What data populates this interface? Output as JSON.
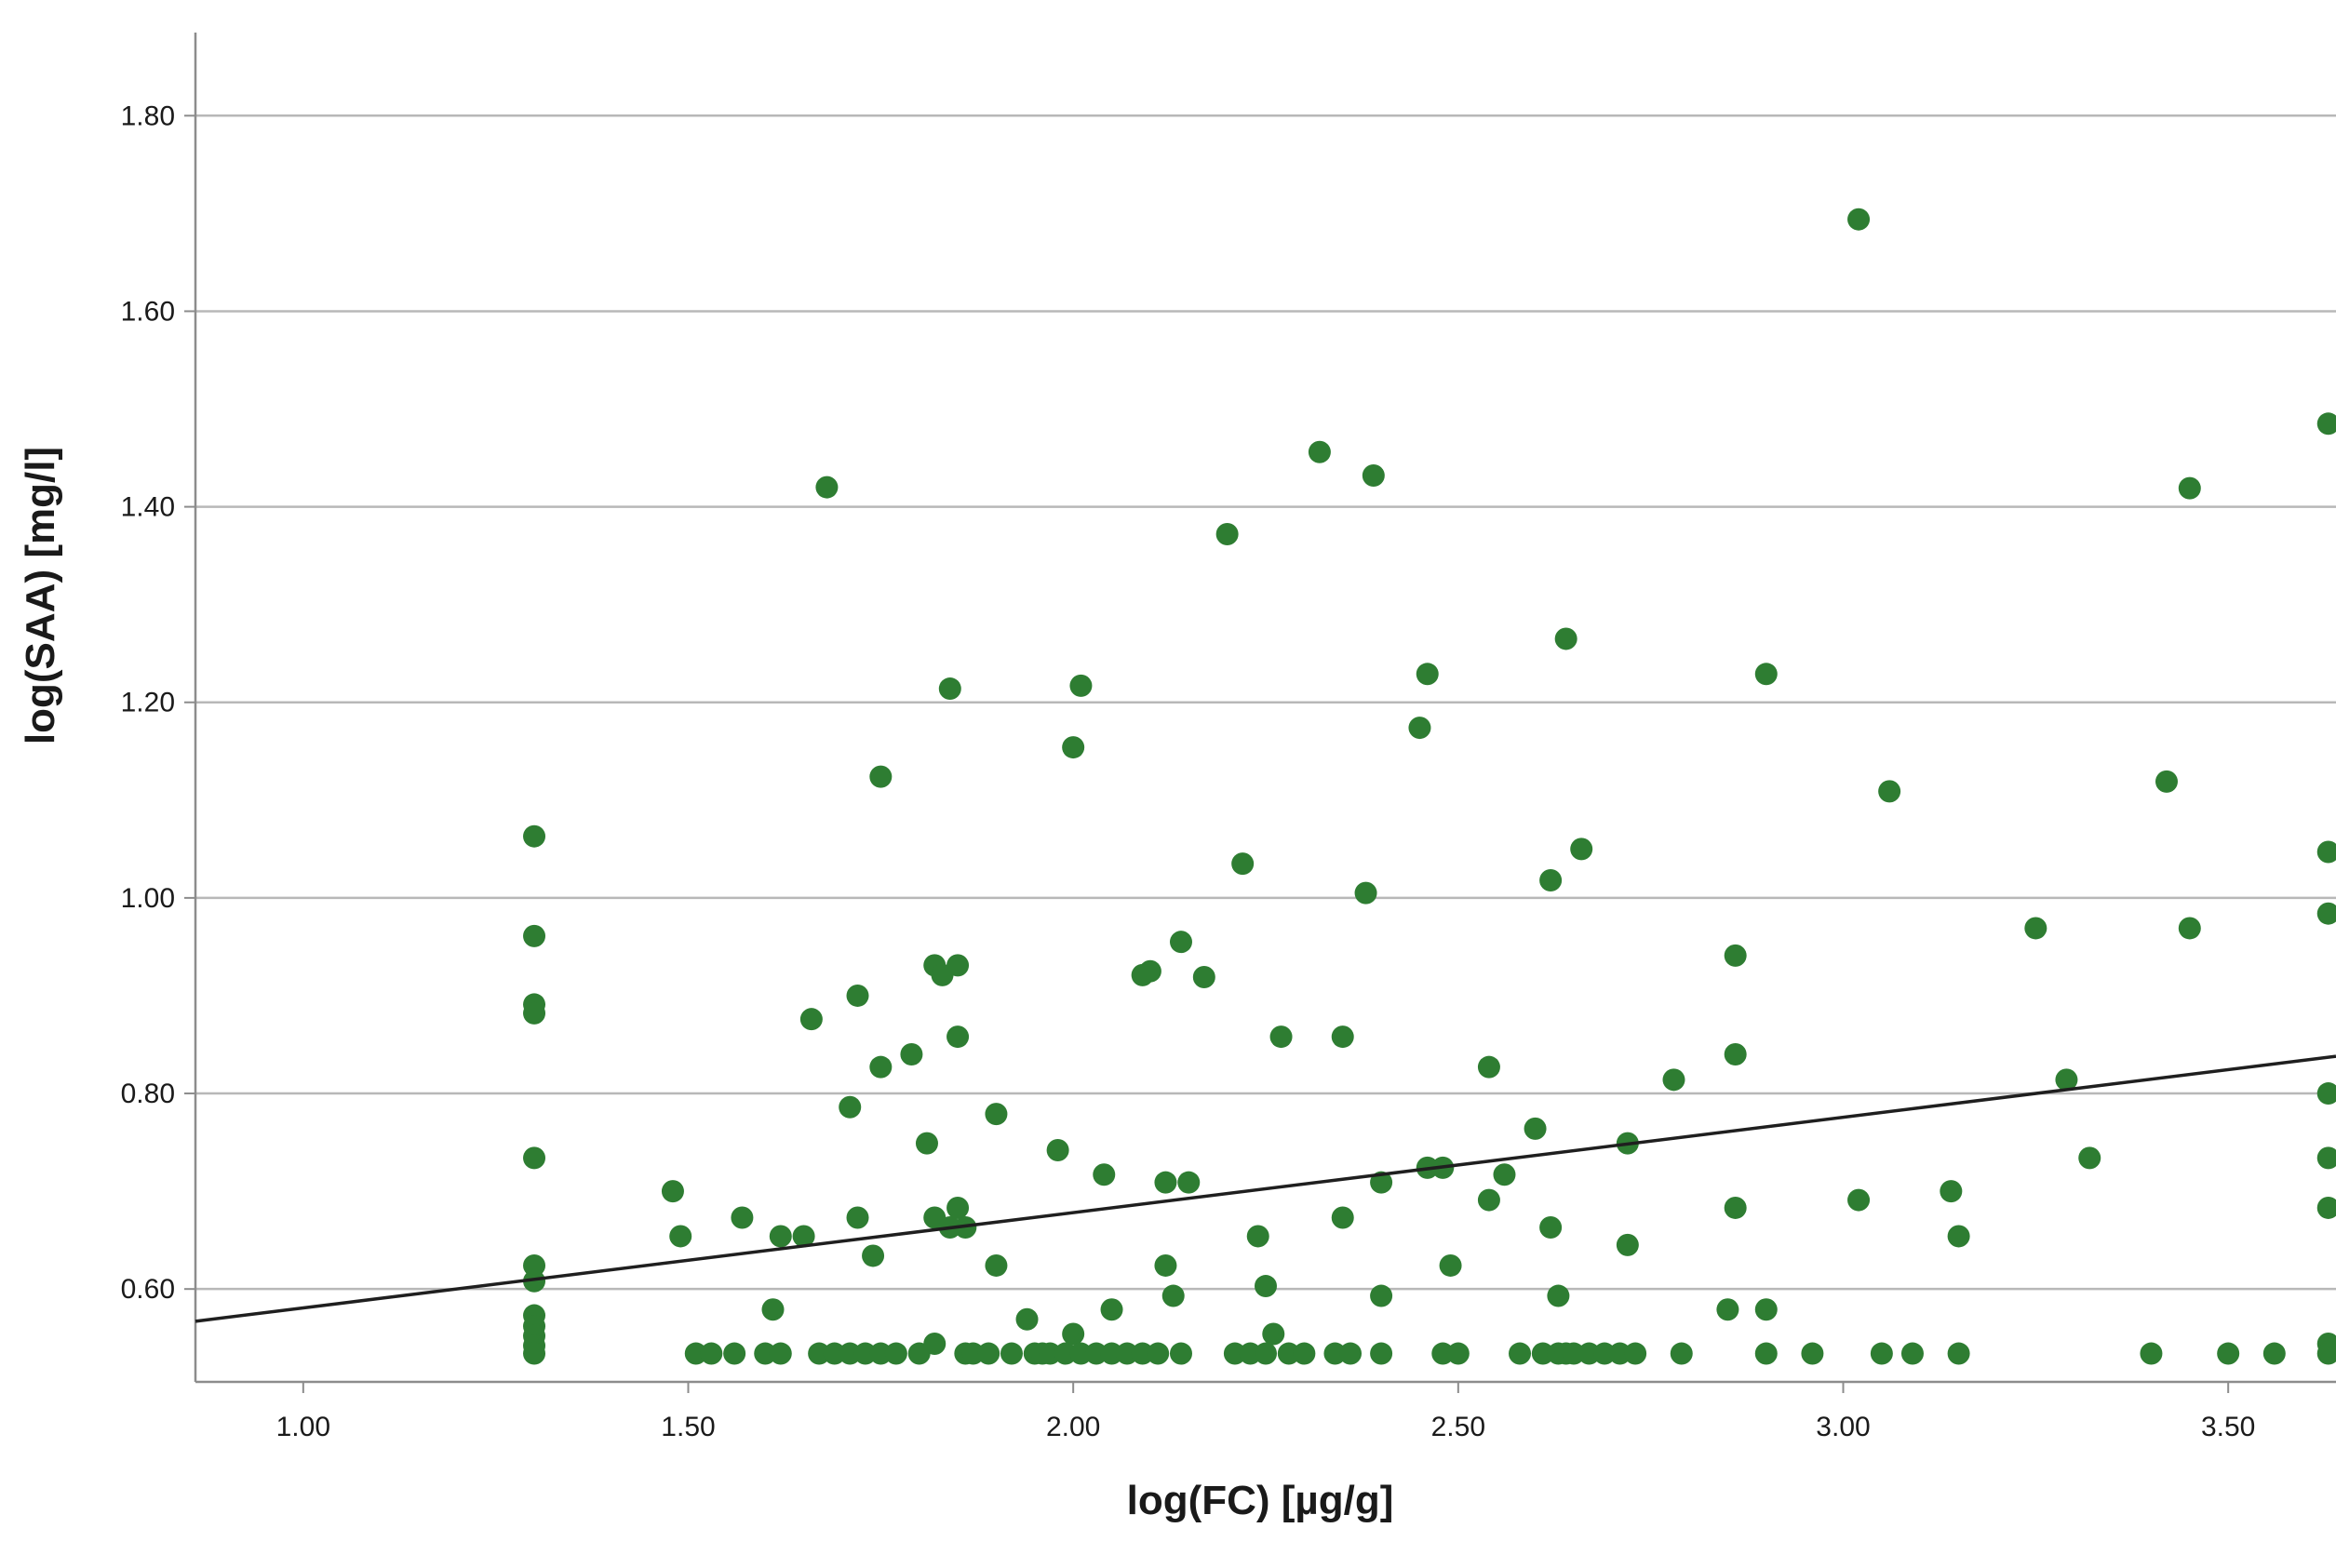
{
  "chart_data": {
    "type": "scatter",
    "title": "",
    "xlabel": "log(FC) [µg/g]",
    "ylabel": "log(SAA) [mg/l]",
    "xlim": [
      0.86,
      3.64
    ],
    "ylim": [
      0.505,
      1.885
    ],
    "x_ticks": [
      "1.00",
      "1.50",
      "2.00",
      "2.50",
      "3.00",
      "3.50"
    ],
    "y_ticks": [
      "0.60",
      "0.80",
      "1.00",
      "1.20",
      "1.40",
      "1.60",
      "1.80"
    ],
    "grid": "horizontal",
    "legend": "none",
    "marker_color": "#2e7d32",
    "fit_line": {
      "type": "linear",
      "x": [
        0.86,
        3.64
      ],
      "y": [
        0.567,
        0.838
      ],
      "color": "#1f1f1f"
    },
    "points": [
      [
        1.3,
        1.063
      ],
      [
        1.3,
        0.961
      ],
      [
        1.3,
        0.891
      ],
      [
        1.3,
        0.882
      ],
      [
        1.3,
        0.734
      ],
      [
        1.3,
        0.624
      ],
      [
        1.3,
        0.608
      ],
      [
        1.3,
        0.573
      ],
      [
        1.3,
        0.562
      ],
      [
        1.3,
        0.552
      ],
      [
        1.3,
        0.542
      ],
      [
        1.3,
        0.534
      ],
      [
        1.48,
        0.7
      ],
      [
        1.49,
        0.654
      ],
      [
        1.51,
        0.534
      ],
      [
        1.53,
        0.534
      ],
      [
        1.56,
        0.534
      ],
      [
        1.57,
        0.673
      ],
      [
        1.6,
        0.534
      ],
      [
        1.61,
        0.579
      ],
      [
        1.62,
        0.534
      ],
      [
        1.62,
        0.654
      ],
      [
        1.65,
        0.654
      ],
      [
        1.66,
        0.876
      ],
      [
        1.67,
        0.534
      ],
      [
        1.68,
        1.42
      ],
      [
        1.69,
        0.534
      ],
      [
        1.71,
        0.534
      ],
      [
        1.71,
        0.786
      ],
      [
        1.72,
        0.9
      ],
      [
        1.72,
        0.673
      ],
      [
        1.73,
        0.534
      ],
      [
        1.74,
        0.634
      ],
      [
        1.75,
        0.827
      ],
      [
        1.75,
        1.124
      ],
      [
        1.75,
        0.534
      ],
      [
        1.77,
        0.534
      ],
      [
        1.79,
        0.84
      ],
      [
        1.8,
        0.534
      ],
      [
        1.81,
        0.749
      ],
      [
        1.82,
        0.673
      ],
      [
        1.82,
        0.931
      ],
      [
        1.82,
        0.544
      ],
      [
        1.83,
        0.921
      ],
      [
        1.84,
        1.214
      ],
      [
        1.84,
        0.663
      ],
      [
        1.85,
        0.931
      ],
      [
        1.85,
        0.858
      ],
      [
        1.85,
        0.683
      ],
      [
        1.86,
        0.663
      ],
      [
        1.86,
        0.534
      ],
      [
        1.87,
        0.534
      ],
      [
        1.89,
        0.534
      ],
      [
        1.9,
        0.624
      ],
      [
        1.9,
        0.779
      ],
      [
        1.92,
        0.534
      ],
      [
        1.94,
        0.569
      ],
      [
        1.95,
        0.534
      ],
      [
        1.96,
        0.534
      ],
      [
        1.97,
        0.534
      ],
      [
        1.98,
        0.742
      ],
      [
        1.99,
        0.534
      ],
      [
        2.0,
        0.554
      ],
      [
        2.0,
        1.154
      ],
      [
        2.01,
        1.217
      ],
      [
        2.01,
        0.534
      ],
      [
        2.03,
        0.534
      ],
      [
        2.04,
        0.717
      ],
      [
        2.05,
        0.534
      ],
      [
        2.05,
        0.579
      ],
      [
        2.07,
        0.534
      ],
      [
        2.09,
        0.534
      ],
      [
        2.09,
        0.921
      ],
      [
        2.1,
        0.925
      ],
      [
        2.11,
        0.534
      ],
      [
        2.12,
        0.624
      ],
      [
        2.12,
        0.709
      ],
      [
        2.13,
        0.593
      ],
      [
        2.14,
        0.534
      ],
      [
        2.14,
        0.955
      ],
      [
        2.15,
        0.709
      ],
      [
        2.17,
        0.919
      ],
      [
        2.2,
        1.372
      ],
      [
        2.21,
        0.534
      ],
      [
        2.22,
        1.035
      ],
      [
        2.23,
        0.534
      ],
      [
        2.24,
        0.654
      ],
      [
        2.25,
        0.534
      ],
      [
        2.25,
        0.603
      ],
      [
        2.26,
        0.554
      ],
      [
        2.27,
        0.858
      ],
      [
        2.28,
        0.534
      ],
      [
        2.3,
        0.534
      ],
      [
        2.32,
        1.456
      ],
      [
        2.34,
        0.534
      ],
      [
        2.35,
        0.858
      ],
      [
        2.35,
        0.673
      ],
      [
        2.36,
        0.534
      ],
      [
        2.38,
        1.005
      ],
      [
        2.39,
        1.432
      ],
      [
        2.4,
        0.709
      ],
      [
        2.4,
        0.593
      ],
      [
        2.4,
        0.534
      ],
      [
        2.45,
        1.174
      ],
      [
        2.46,
        1.229
      ],
      [
        2.46,
        0.724
      ],
      [
        2.48,
        0.534
      ],
      [
        2.48,
        0.724
      ],
      [
        2.49,
        0.624
      ],
      [
        2.5,
        0.534
      ],
      [
        2.54,
        0.827
      ],
      [
        2.54,
        0.691
      ],
      [
        2.56,
        0.717
      ],
      [
        2.58,
        0.534
      ],
      [
        2.6,
        0.764
      ],
      [
        2.61,
        0.534
      ],
      [
        2.62,
        1.018
      ],
      [
        2.62,
        0.663
      ],
      [
        2.63,
        0.593
      ],
      [
        2.63,
        0.534
      ],
      [
        2.64,
        1.265
      ],
      [
        2.64,
        0.534
      ],
      [
        2.65,
        0.534
      ],
      [
        2.66,
        1.05
      ],
      [
        2.67,
        0.534
      ],
      [
        2.69,
        0.534
      ],
      [
        2.71,
        0.534
      ],
      [
        2.72,
        0.645
      ],
      [
        2.72,
        0.749
      ],
      [
        2.73,
        0.534
      ],
      [
        2.78,
        0.814
      ],
      [
        2.79,
        0.534
      ],
      [
        2.85,
        0.579
      ],
      [
        2.86,
        0.941
      ],
      [
        2.86,
        0.84
      ],
      [
        2.86,
        0.683
      ],
      [
        2.9,
        1.229
      ],
      [
        2.9,
        0.534
      ],
      [
        2.9,
        0.579
      ],
      [
        2.96,
        0.534
      ],
      [
        3.02,
        1.694
      ],
      [
        3.02,
        0.691
      ],
      [
        3.05,
        0.534
      ],
      [
        3.06,
        1.109
      ],
      [
        3.09,
        0.534
      ],
      [
        3.14,
        0.7
      ],
      [
        3.15,
        0.534
      ],
      [
        3.15,
        0.654
      ],
      [
        3.25,
        0.969
      ],
      [
        3.29,
        0.814
      ],
      [
        3.32,
        0.734
      ],
      [
        3.4,
        0.534
      ],
      [
        3.42,
        1.119
      ],
      [
        3.45,
        0.969
      ],
      [
        3.45,
        1.419
      ],
      [
        3.5,
        0.534
      ],
      [
        3.56,
        0.534
      ],
      [
        3.63,
        1.485
      ],
      [
        3.63,
        1.047
      ],
      [
        3.63,
        0.984
      ],
      [
        3.63,
        0.8
      ],
      [
        3.63,
        0.734
      ],
      [
        3.63,
        0.683
      ],
      [
        3.63,
        0.544
      ],
      [
        3.63,
        0.534
      ]
    ]
  }
}
